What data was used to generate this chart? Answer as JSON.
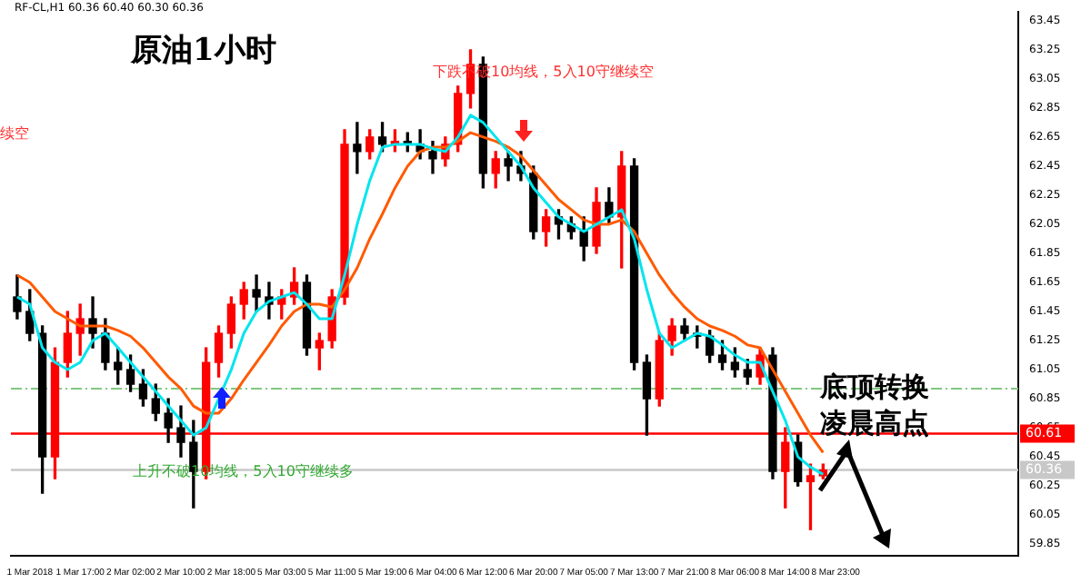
{
  "chart_data": {
    "type": "candlestick",
    "title": "原油1小时",
    "categories": [
      null,
      "1 Mar 2018",
      null,
      null,
      null,
      "1 Mar 17:00",
      null,
      null,
      null,
      "2 Mar 02:00",
      null,
      null,
      null,
      "2 Mar 10:00",
      null,
      null,
      null,
      "2 Mar 18:00",
      null,
      null,
      null,
      "5 Mar 03:00",
      null,
      null,
      null,
      "5 Mar 11:00",
      null,
      null,
      null,
      "5 Mar 19:00",
      null,
      null,
      null,
      "6 Mar 04:00",
      null,
      null,
      null,
      "6 Mar 12:00",
      null,
      null,
      null,
      "6 Mar 20:00",
      null,
      null,
      null,
      "7 Mar 05:00",
      null,
      null,
      null,
      "7 Mar 13:00",
      null,
      null,
      null,
      "7 Mar 21:00",
      null,
      null,
      null,
      "8 Mar 06:00",
      null,
      null,
      null,
      "8 Mar 14:00",
      null,
      null,
      null,
      "8 Mar 23:00",
      null,
      null,
      null,
      null,
      null,
      null,
      null,
      null,
      null,
      null,
      null,
      null,
      null,
      null
    ],
    "ohlc": [
      [
        61.55,
        61.7,
        61.4,
        61.45
      ],
      [
        61.45,
        61.6,
        61.25,
        61.3
      ],
      [
        61.3,
        61.35,
        60.2,
        60.45
      ],
      [
        60.45,
        61.2,
        60.3,
        61.1
      ],
      [
        61.1,
        61.45,
        61.0,
        61.3
      ],
      [
        61.3,
        61.5,
        61.15,
        61.4
      ],
      [
        61.4,
        61.55,
        61.2,
        61.3
      ],
      [
        61.3,
        61.4,
        61.05,
        61.1
      ],
      [
        61.1,
        61.2,
        60.95,
        61.05
      ],
      [
        61.05,
        61.15,
        60.9,
        60.95
      ],
      [
        60.95,
        61.05,
        60.8,
        60.85
      ],
      [
        60.85,
        60.95,
        60.7,
        60.75
      ],
      [
        60.75,
        60.85,
        60.55,
        60.65
      ],
      [
        60.65,
        60.8,
        60.45,
        60.55
      ],
      [
        60.55,
        60.7,
        60.1,
        60.35
      ],
      [
        60.35,
        61.2,
        60.3,
        61.1
      ],
      [
        61.1,
        61.35,
        61.0,
        61.3
      ],
      [
        61.3,
        61.55,
        61.2,
        61.5
      ],
      [
        61.5,
        61.65,
        61.4,
        61.6
      ],
      [
        61.6,
        61.7,
        61.45,
        61.55
      ],
      [
        61.55,
        61.65,
        61.4,
        61.5
      ],
      [
        61.5,
        61.6,
        61.4,
        61.55
      ],
      [
        61.55,
        61.75,
        61.5,
        61.65
      ],
      [
        61.65,
        61.7,
        61.15,
        61.2
      ],
      [
        61.2,
        61.3,
        61.05,
        61.25
      ],
      [
        61.25,
        61.6,
        61.2,
        61.55
      ],
      [
        61.55,
        62.7,
        61.5,
        62.6
      ],
      [
        62.6,
        62.75,
        62.4,
        62.55
      ],
      [
        62.55,
        62.7,
        62.5,
        62.65
      ],
      [
        62.65,
        62.75,
        62.55,
        62.6
      ],
      [
        62.6,
        62.7,
        62.55,
        62.62
      ],
      [
        62.62,
        62.68,
        62.55,
        62.6
      ],
      [
        62.6,
        62.7,
        62.5,
        62.55
      ],
      [
        62.55,
        62.62,
        62.4,
        62.5
      ],
      [
        62.5,
        62.65,
        62.45,
        62.6
      ],
      [
        62.6,
        63.0,
        62.55,
        62.95
      ],
      [
        62.95,
        63.25,
        62.85,
        63.15
      ],
      [
        63.15,
        63.2,
        62.3,
        62.4
      ],
      [
        62.4,
        62.55,
        62.3,
        62.5
      ],
      [
        62.5,
        62.55,
        62.35,
        62.45
      ],
      [
        62.45,
        62.55,
        62.35,
        62.4
      ],
      [
        62.4,
        62.45,
        61.95,
        62.0
      ],
      [
        62.0,
        62.15,
        61.9,
        62.1
      ],
      [
        62.1,
        62.15,
        61.95,
        62.05
      ],
      [
        62.05,
        62.1,
        61.95,
        62.0
      ],
      [
        62.0,
        62.1,
        61.8,
        61.9
      ],
      [
        61.9,
        62.3,
        61.85,
        62.2
      ],
      [
        62.2,
        62.3,
        62.05,
        62.1
      ],
      [
        62.1,
        62.55,
        61.75,
        62.45
      ],
      [
        62.45,
        62.5,
        61.05,
        61.1
      ],
      [
        61.1,
        61.15,
        60.6,
        60.85
      ],
      [
        60.85,
        61.3,
        60.8,
        61.25
      ],
      [
        61.25,
        61.4,
        61.15,
        61.35
      ],
      [
        61.35,
        61.4,
        61.25,
        61.3
      ],
      [
        61.3,
        61.35,
        61.2,
        61.28
      ],
      [
        61.28,
        61.32,
        61.1,
        61.15
      ],
      [
        61.15,
        61.25,
        61.05,
        61.1
      ],
      [
        61.1,
        61.2,
        61.0,
        61.05
      ],
      [
        61.05,
        61.12,
        60.95,
        61.0
      ],
      [
        61.0,
        61.2,
        60.95,
        61.15
      ],
      [
        61.15,
        61.2,
        60.3,
        60.35
      ],
      [
        60.35,
        60.65,
        60.1,
        60.55
      ],
      [
        60.55,
        60.6,
        60.25,
        60.28
      ],
      [
        60.28,
        60.4,
        59.95,
        60.32
      ],
      [
        60.32,
        60.4,
        60.3,
        60.36
      ],
      null,
      null,
      null,
      null,
      null,
      null,
      null,
      null,
      null,
      null,
      null,
      null,
      null,
      null,
      null
    ],
    "colors": [
      "#000000",
      "#000000",
      "#000000",
      "#ff0000",
      "#ff0000",
      "#ff0000",
      "#000000",
      "#000000",
      "#000000",
      "#000000",
      "#000000",
      "#000000",
      "#000000",
      "#000000",
      "#000000",
      "#ff0000",
      "#ff0000",
      "#ff0000",
      "#ff0000",
      "#000000",
      "#000000",
      "#ff0000",
      "#ff0000",
      "#000000",
      "#ff0000",
      "#ff0000",
      "#ff0000",
      "#000000",
      "#ff0000",
      "#000000",
      "#ff0000",
      "#000000",
      "#000000",
      "#000000",
      "#ff0000",
      "#ff0000",
      "#ff0000",
      "#000000",
      "#ff0000",
      "#000000",
      "#000000",
      "#000000",
      "#ff0000",
      "#000000",
      "#000000",
      "#000000",
      "#ff0000",
      "#000000",
      "#ff0000",
      "#000000",
      "#000000",
      "#ff0000",
      "#ff0000",
      "#000000",
      "#000000",
      "#000000",
      "#000000",
      "#000000",
      "#000000",
      "#ff0000",
      "#000000",
      "#ff0000",
      "#000000",
      "#ff0000",
      "#ff0000",
      null,
      null,
      null,
      null,
      null,
      null,
      null,
      null,
      null,
      null,
      null,
      null,
      null,
      null,
      null
    ],
    "series": [
      {
        "type": "line",
        "color": "#00e5ee",
        "values": [
          61.55,
          61.5,
          61.2,
          61.1,
          61.05,
          61.1,
          61.25,
          61.3,
          61.2,
          61.1,
          61.0,
          60.9,
          60.8,
          60.7,
          60.6,
          60.65,
          60.85,
          61.05,
          61.3,
          61.45,
          61.52,
          61.55,
          61.58,
          61.5,
          61.4,
          61.4,
          61.7,
          62.05,
          62.35,
          62.58,
          62.6,
          62.6,
          62.6,
          62.57,
          62.55,
          62.65,
          62.8,
          62.75,
          62.65,
          62.55,
          62.45,
          62.3,
          62.2,
          62.1,
          62.05,
          62.0,
          62.05,
          62.1,
          62.15,
          61.95,
          61.6,
          61.3,
          61.2,
          61.25,
          61.3,
          61.28,
          61.22,
          61.15,
          61.1,
          61.1,
          60.9,
          60.7,
          60.45,
          60.38,
          60.33,
          null,
          null,
          null,
          null,
          null,
          null,
          null,
          null,
          null,
          null,
          null,
          null,
          null,
          null,
          null
        ]
      },
      {
        "type": "line",
        "color": "#ff5a00",
        "values": [
          61.7,
          61.65,
          61.55,
          61.45,
          61.4,
          61.35,
          61.35,
          61.35,
          61.32,
          61.28,
          61.2,
          61.1,
          61.0,
          60.92,
          60.8,
          60.75,
          60.75,
          60.85,
          60.98,
          61.1,
          61.22,
          61.35,
          61.45,
          61.5,
          61.5,
          61.48,
          61.6,
          61.75,
          61.95,
          62.12,
          62.3,
          62.45,
          62.55,
          62.58,
          62.58,
          62.62,
          62.68,
          62.65,
          62.62,
          62.58,
          62.52,
          62.42,
          62.32,
          62.22,
          62.15,
          62.08,
          62.05,
          62.05,
          62.08,
          62.0,
          61.85,
          61.7,
          61.58,
          61.48,
          61.4,
          61.35,
          61.32,
          61.28,
          61.22,
          61.2,
          61.05,
          60.9,
          60.75,
          60.6,
          60.48,
          null,
          null,
          null,
          null,
          null,
          null,
          null,
          null,
          null,
          null,
          null,
          null,
          null,
          null,
          null
        ]
      }
    ],
    "ylim": [
      59.77,
      63.51
    ],
    "yticks": [
      63.45,
      63.25,
      63.05,
      62.85,
      62.65,
      62.45,
      62.25,
      62.05,
      61.85,
      61.65,
      61.45,
      61.25,
      61.05,
      60.85,
      60.65,
      60.45,
      60.25,
      60.05,
      59.85
    ],
    "ref_lines": [
      {
        "axis": "y",
        "value": 60.61,
        "label": "60.61",
        "color": "#ff0000",
        "line_style": "solid"
      },
      {
        "axis": "y",
        "value": 60.92,
        "color": "#7fc97f",
        "line_style": "dashed"
      },
      {
        "axis": "y",
        "value": 60.36,
        "label": "60.36",
        "color": "#c8c8c8",
        "line_style": "solid"
      }
    ],
    "annotations": [
      "RF-CL,H1 60.36 60.40 60.30 60.36",
      "下跌不破10均线，5入10守继续空",
      "续空",
      "上升不破10均线，5入10守继续多",
      "底顶转换",
      "凌晨高点"
    ],
    "grid": false,
    "legend": false,
    "marker": "none",
    "line_style": "solid"
  }
}
